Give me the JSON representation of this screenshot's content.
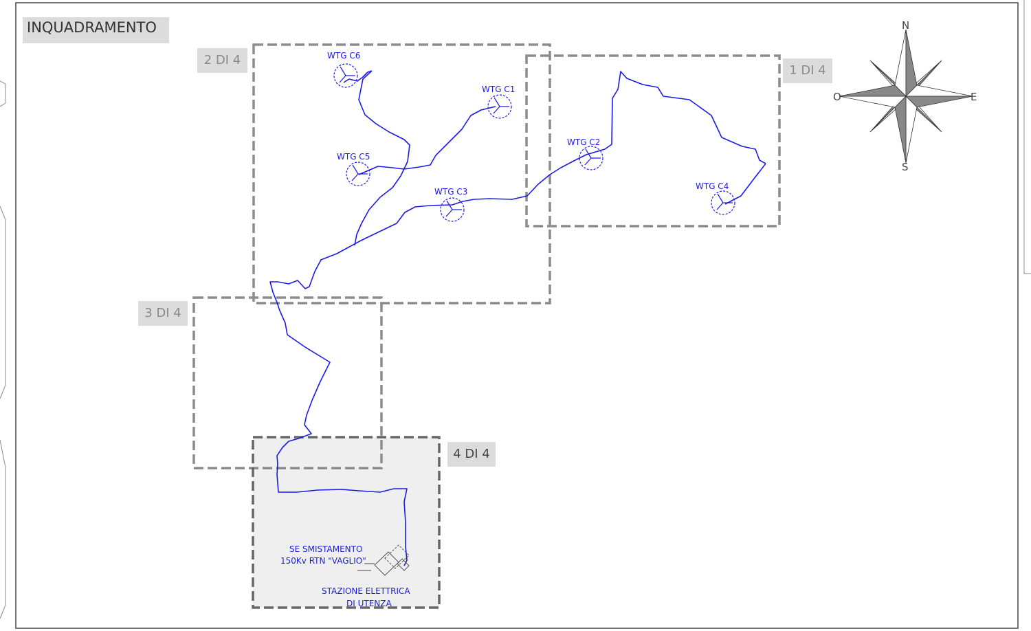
{
  "title": "INQUADRAMENTO",
  "sheets": [
    {
      "label": "1 DI 4"
    },
    {
      "label": "2 DI 4"
    },
    {
      "label": "3 DI 4"
    },
    {
      "label": "4 DI 4"
    }
  ],
  "turbines": [
    {
      "label": "WTG C1"
    },
    {
      "label": "WTG C2"
    },
    {
      "label": "WTG C3"
    },
    {
      "label": "WTG C4"
    },
    {
      "label": "WTG C5"
    },
    {
      "label": "WTG C6"
    }
  ],
  "stations": {
    "rtn_line1": "SE SMISTAMENTO",
    "rtn_line2": "150Kv RTN \"VAGLIO\"",
    "user_line1": "STAZIONE ELETTRICA",
    "user_line2": "DI UTENZA"
  },
  "compass": {
    "n": "N",
    "e": "E",
    "s": "S",
    "w": "O"
  },
  "colors": {
    "cable": "#1a1ae6",
    "sheet_frame": "#8c8c8c",
    "label_bg": "#dcdcdc",
    "highlight": "#efefef"
  }
}
